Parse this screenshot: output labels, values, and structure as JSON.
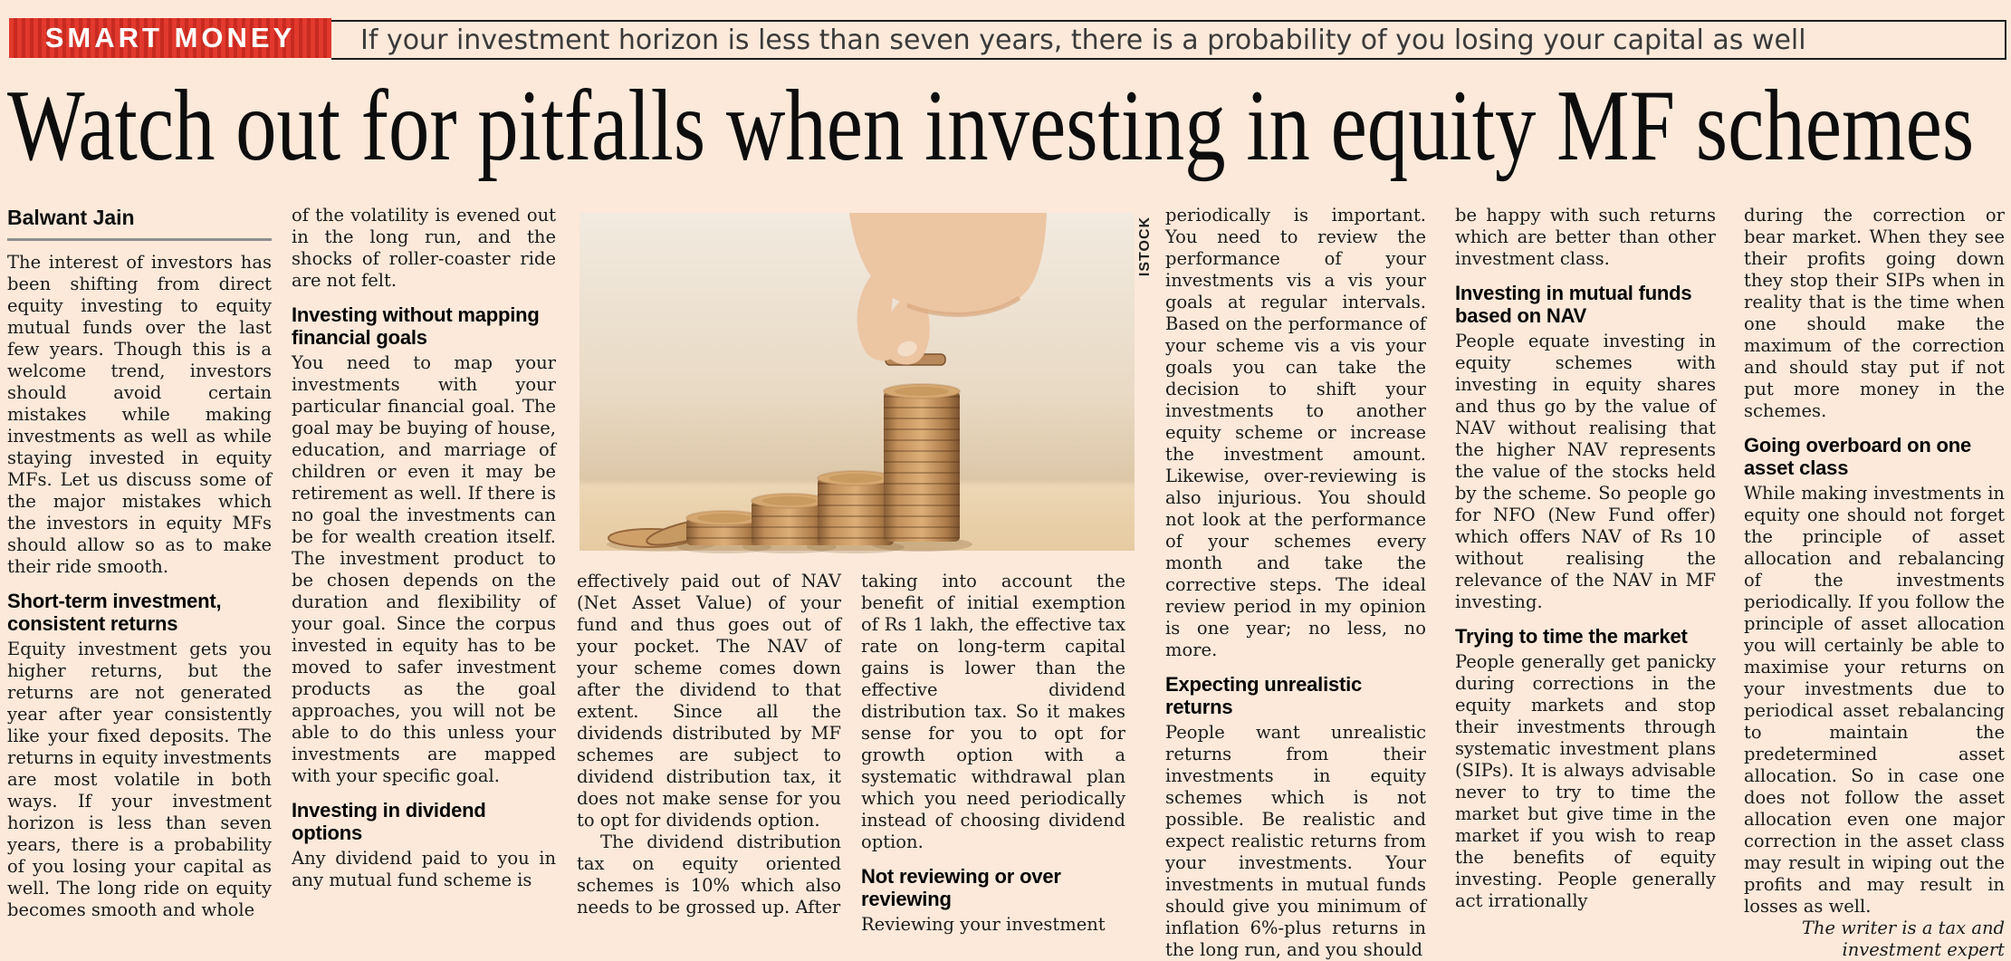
{
  "colors": {
    "page_bg": "#fce9da",
    "ink": "#1b1b1b",
    "badge_red": "#e2392d",
    "badge_stripe": "#c72a20",
    "tagline_ink": "#3a3a3a",
    "rule_gray": "#8f8f8f"
  },
  "masthead": {
    "badge_label": "SMART MONEY",
    "tagline": "If your investment horizon is less than seven years, there is a probability of you losing your capital as well"
  },
  "headline": "Watch out for pitfalls when investing in equity MF schemes",
  "photo": {
    "credit": "ISTOCK"
  },
  "article": {
    "byline": "Balwant Jain",
    "columns": [
      {
        "blocks": [
          {
            "type": "byline",
            "text": "Balwant Jain"
          },
          {
            "type": "rule"
          },
          {
            "type": "p",
            "text": "The interest of investors has been shifting from direct equity investing to equity mutual funds over the last few years. Though this is a welcome trend, investors should avoid certain mistakes while making investments as well as while staying invested in equity MFs. Let us discuss some of the major mistakes which the investors in equity MFs should allow so as to make their ride smooth."
          },
          {
            "type": "h",
            "text": "Short-term investment, consistent returns"
          },
          {
            "type": "p",
            "text": "Equity investment gets you higher returns, but the returns are not generated year after year consistently like your fixed deposits. The returns in equity investments are most volatile in both ways. If your investment horizon is less than seven years, there is a probability of you losing your capital as well. The long ride on equity becomes smooth and whole"
          }
        ]
      },
      {
        "blocks": [
          {
            "type": "p",
            "text": "of the volatility is evened out in the long run, and the shocks of roller-coaster ride are not felt."
          },
          {
            "type": "h",
            "text": "Investing without mapping financial goals"
          },
          {
            "type": "p",
            "text": "You need to map your investments with your particular financial goal. The goal may be buying of house, education, and marriage of children or even it may be retirement as well. If there is no goal the investments can be for wealth creation itself. The investment product to be chosen depends on the duration and flexibility of your goal. Since the corpus invested in equity has to be moved to safer investment products as the goal approaches, you will not be able to do this unless your investments are mapped with your specific goal."
          },
          {
            "type": "h",
            "text": "Investing in dividend options"
          },
          {
            "type": "p",
            "text": "Any dividend paid to you in any mutual fund scheme is"
          }
        ]
      },
      {
        "blocks": [
          {
            "type": "p",
            "text": "effectively paid out of NAV (Net Asset Value) of your fund and thus goes out of your pocket. The NAV of your scheme comes down after the dividend to that extent. Since all the dividends distributed by MF schemes are subject to dividend distribution tax, it does not make sense for you to opt for dividends option."
          },
          {
            "type": "p",
            "text": "The dividend distribution tax on equity oriented schemes is 10% which also needs to be grossed up. After"
          }
        ]
      },
      {
        "blocks": [
          {
            "type": "p",
            "text": "taking into account the benefit of initial exemption of Rs 1 lakh, the effective tax rate on long-term capital gains is lower than the effective dividend distribution tax. So it makes sense for you to opt for growth option with a systematic withdrawal plan which you need periodically instead of choosing dividend option."
          },
          {
            "type": "h",
            "text": "Not reviewing or over reviewing"
          },
          {
            "type": "p",
            "text": "Reviewing your investment"
          }
        ]
      },
      {
        "blocks": [
          {
            "type": "p",
            "text": "periodically is important. You need to review the performance of your investments vis a vis your goals at regular intervals. Based on the performance of your scheme vis a vis your goals you can take the decision to shift your investments to another equity scheme or increase the investment amount. Likewise, over-reviewing is also injurious. You should not look at the performance of your schemes every month and take the corrective steps. The ideal review period in my opinion is one year; no less, no more."
          },
          {
            "type": "h",
            "text": "Expecting unrealistic returns"
          },
          {
            "type": "p",
            "text": "People want unrealistic returns from their investments in equity schemes which is not possible. Be realistic and expect realistic returns from your investments. Your investments in mutual funds should give you minimum of inflation 6%-plus returns in the long run, and you should"
          }
        ]
      },
      {
        "blocks": [
          {
            "type": "p",
            "text": "be happy with such returns which are better than other investment class."
          },
          {
            "type": "h",
            "text": "Investing in mutual funds based on NAV"
          },
          {
            "type": "p",
            "text": "People equate investing in equity schemes with investing in equity shares and thus go by the value of NAV without realising that the higher NAV represents the value of the stocks held by the scheme. So people go for NFO (New Fund offer) which offers NAV of Rs 10 without realising the relevance of the NAV in MF investing."
          },
          {
            "type": "h",
            "text": "Trying to time the market"
          },
          {
            "type": "p",
            "text": "People generally get panicky during corrections in the equity markets and stop their investments through systematic investment plans (SIPs). It is always advisable never to try to time the market but give time in the market if you wish to reap the benefits of equity investing. People generally act irrationally"
          }
        ]
      },
      {
        "blocks": [
          {
            "type": "p",
            "text": "during the correction or bear market. When they see their profits going down they stop their SIPs when in reality that is the time when one should make the maximum of the correction and should stay put if not put more money in the schemes."
          },
          {
            "type": "h",
            "text": "Going overboard on one asset class"
          },
          {
            "type": "p",
            "text": "While making investments in equity one should not forget the principle of asset allocation and rebalancing of the investments periodically. If you follow the principle of asset allocation you will certainly be able to maximise your returns on your investments due to periodical asset rebalancing to maintain the predetermined asset allocation. So in case one does not follow the asset allocation even one major correction in the asset class may result in wiping out the profits and may result in losses as well."
          },
          {
            "type": "signoff",
            "text": "The writer is a tax and investment expert"
          }
        ]
      }
    ]
  }
}
